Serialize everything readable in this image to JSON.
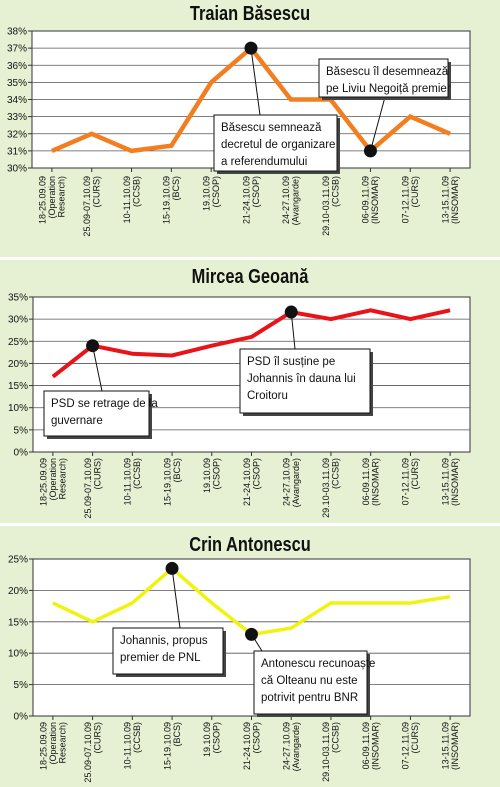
{
  "chart_data": [
    {
      "type": "line",
      "title": "Traian Băsescu",
      "categories": [
        {
          "date": "18-25.09.09",
          "source": "(Operation Research)"
        },
        {
          "date": "25.09-07.10.09",
          "source": "(CURS)"
        },
        {
          "date": "10-11.10.09",
          "source": "(CCSB)"
        },
        {
          "date": "15-19.10.09",
          "source": "(BCS)"
        },
        {
          "date": "19.10.09",
          "source": "(CSOP)"
        },
        {
          "date": "21-24.10.09",
          "source": "(CSOP)"
        },
        {
          "date": "24-27.10.09",
          "source": "(Avangarde)"
        },
        {
          "date": "29.10-03.11.09",
          "source": "(CCSB)"
        },
        {
          "date": "06-09.11.09",
          "source": "(INSOMAR)"
        },
        {
          "date": "07-12.11.09",
          "source": "(CURS)"
        },
        {
          "date": "13-15.11.09",
          "source": "(INSOMAR)"
        }
      ],
      "series": [
        {
          "values": [
            31,
            32,
            31,
            31.3,
            35,
            37,
            34,
            34,
            31,
            33,
            32
          ]
        }
      ],
      "yticks": [
        "30%",
        "31%",
        "32%",
        "33%",
        "34%",
        "35%",
        "36%",
        "37%",
        "38%"
      ],
      "ylim": [
        30,
        38
      ],
      "color": "#f27e1f",
      "annotations": [
        {
          "lines": [
            "Băsescu semnează",
            "decretul de organizare",
            "a referendumului"
          ]
        },
        {
          "lines": [
            "Băsescu îl desemnează",
            "pe Liviu Negoiță premier"
          ]
        }
      ]
    },
    {
      "type": "line",
      "title": "Mircea Geoană",
      "categories": [
        {
          "date": "18-25.09.09",
          "source": "(Operation Research)"
        },
        {
          "date": "25.09-07.10.09",
          "source": "(CURS)"
        },
        {
          "date": "10-11.10.09",
          "source": "(CCSB)"
        },
        {
          "date": "15-19.10.09",
          "source": "(BCS)"
        },
        {
          "date": "19.10.09",
          "source": "(CSOP)"
        },
        {
          "date": "21-24.10.09",
          "source": "(CSOP)"
        },
        {
          "date": "24-27.10.09",
          "source": "(Avangarde)"
        },
        {
          "date": "29.10-03.11.09",
          "source": "(CCSB)"
        },
        {
          "date": "06-09.11.09",
          "source": "(INSOMAR)"
        },
        {
          "date": "07-12.11.09",
          "source": "(CURS)"
        },
        {
          "date": "13-15.11.09",
          "source": "(INSOMAR)"
        }
      ],
      "series": [
        {
          "values": [
            17,
            24,
            22.2,
            21.8,
            24,
            26,
            31.6,
            30,
            32,
            30,
            32
          ]
        }
      ],
      "yticks": [
        "0%",
        "5%",
        "10%",
        "15%",
        "20%",
        "25%",
        "30%",
        "35%"
      ],
      "ylim": [
        0,
        35
      ],
      "color": "#e8141a",
      "annotations": [
        {
          "lines": [
            "PSD se retrage de la",
            "guvernare"
          ]
        },
        {
          "lines": [
            "PSD îl susține pe",
            "Johannis în dauna lui",
            "Croitoru"
          ]
        }
      ]
    },
    {
      "type": "line",
      "title": "Crin Antonescu",
      "categories": [
        {
          "date": "18-25.09.09",
          "source": "(Operation Research)"
        },
        {
          "date": "25.09-07.10.09",
          "source": "(CURS)"
        },
        {
          "date": "10-11.10.09",
          "source": "(CCSB)"
        },
        {
          "date": "15-19.10.09",
          "source": "(BCS)"
        },
        {
          "date": "19.10.09",
          "source": "(CSOP)"
        },
        {
          "date": "21-24.10.09",
          "source": "(CSOP)"
        },
        {
          "date": "24-27.10.09",
          "source": "(Avangarde)"
        },
        {
          "date": "29.10-03.11.09",
          "source": "(CCSB)"
        },
        {
          "date": "06-09.11.09",
          "source": "(INSOMAR)"
        },
        {
          "date": "07-12.11.09",
          "source": "(CURS)"
        },
        {
          "date": "13-15.11.09",
          "source": "(INSOMAR)"
        }
      ],
      "series": [
        {
          "values": [
            18,
            15,
            18,
            23.5,
            18,
            13,
            14,
            18,
            18,
            18,
            19
          ]
        }
      ],
      "yticks": [
        "0%",
        "5%",
        "10%",
        "15%",
        "20%",
        "25%"
      ],
      "ylim": [
        0,
        25
      ],
      "color": "#f2f20f",
      "annotations": [
        {
          "lines": [
            "Johannis, propus",
            "premier de PNL"
          ]
        },
        {
          "lines": [
            "Antonescu recunoaște",
            "că Olteanu nu este",
            "potrivit pentru BNR"
          ]
        }
      ]
    }
  ]
}
